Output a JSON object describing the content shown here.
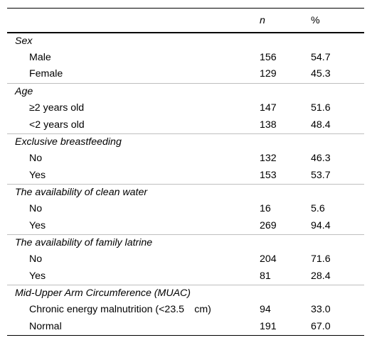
{
  "table": {
    "headers": {
      "label": "",
      "n": "n",
      "pct": "%"
    },
    "groups": [
      {
        "title": "Sex",
        "rows": [
          {
            "label": "Male",
            "n": "156",
            "pct": "54.7"
          },
          {
            "label": "Female",
            "n": "129",
            "pct": "45.3"
          }
        ]
      },
      {
        "title": "Age",
        "rows": [
          {
            "label": "≥2 years old",
            "n": "147",
            "pct": "51.6"
          },
          {
            "label": "<2 years old",
            "n": "138",
            "pct": "48.4"
          }
        ]
      },
      {
        "title": "Exclusive breastfeeding",
        "rows": [
          {
            "label": "No",
            "n": "132",
            "pct": "46.3"
          },
          {
            "label": "Yes",
            "n": "153",
            "pct": "53.7"
          }
        ]
      },
      {
        "title": "The availability of clean water",
        "rows": [
          {
            "label": "No",
            "n": "16",
            "pct": "5.6"
          },
          {
            "label": "Yes",
            "n": "269",
            "pct": "94.4"
          }
        ]
      },
      {
        "title": "The availability of family latrine",
        "rows": [
          {
            "label": "No",
            "n": "204",
            "pct": "71.6"
          },
          {
            "label": "Yes",
            "n": "81",
            "pct": "28.4"
          }
        ]
      },
      {
        "title": "Mid-Upper Arm Circumference (MUAC)",
        "rows": [
          {
            "label": "Chronic energy malnutrition (<23.5  cm)",
            "n": "94",
            "pct": "33.0"
          },
          {
            "label": "Normal",
            "n": "191",
            "pct": "67.0"
          }
        ]
      }
    ]
  }
}
